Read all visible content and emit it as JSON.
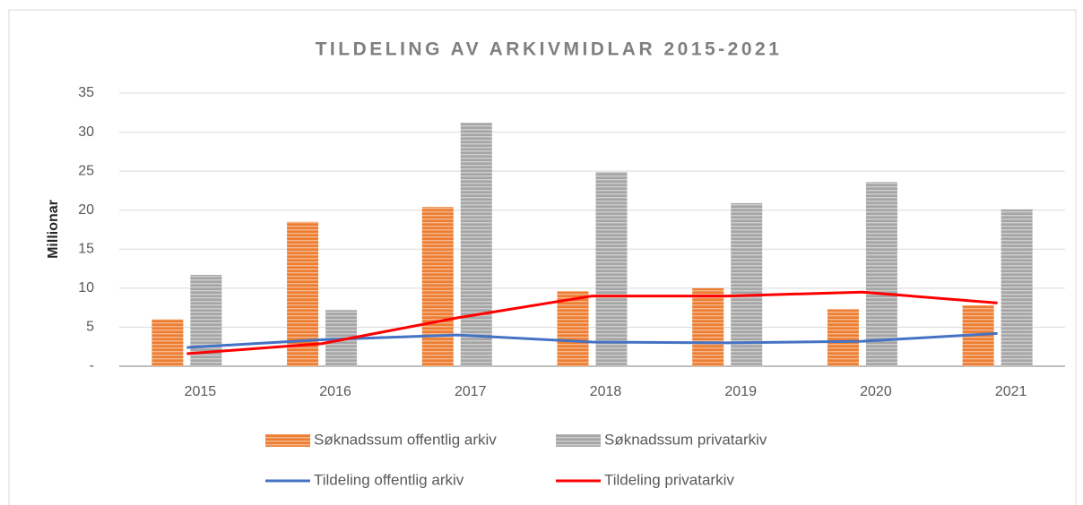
{
  "chart_data": {
    "type": "bar",
    "title": "TILDELING AV ARKIVMIDLAR 2015-2021",
    "y_label": "Millionar",
    "categories": [
      "2015",
      "2016",
      "2017",
      "2018",
      "2019",
      "2020",
      "2021"
    ],
    "series": [
      {
        "name": "Søknadssum offentlig arkiv",
        "type": "bar",
        "color": "#ed7d31",
        "values": [
          6.0,
          18.5,
          20.4,
          9.6,
          10.0,
          7.3,
          7.8
        ]
      },
      {
        "name": "Søknadssum privatarkiv",
        "type": "bar",
        "color": "#a5a5a5",
        "values": [
          11.7,
          7.2,
          31.2,
          24.9,
          20.9,
          23.6,
          20.1
        ]
      },
      {
        "name": "Tildeling offentlig arkiv",
        "type": "line",
        "color": "#4472c4",
        "values": [
          2.4,
          3.4,
          4.0,
          3.1,
          3.0,
          3.2,
          4.2
        ]
      },
      {
        "name": "Tildeling privatarkiv",
        "type": "line",
        "color": "#ff0000",
        "values": [
          1.6,
          2.9,
          6.2,
          9.0,
          9.0,
          9.5,
          8.1
        ]
      }
    ],
    "ylim": [
      0,
      35
    ],
    "yticks": [
      {
        "value": 0,
        "label": "-"
      },
      5,
      10,
      15,
      20,
      25,
      30,
      35
    ],
    "grid": true,
    "legend": "bottom"
  }
}
